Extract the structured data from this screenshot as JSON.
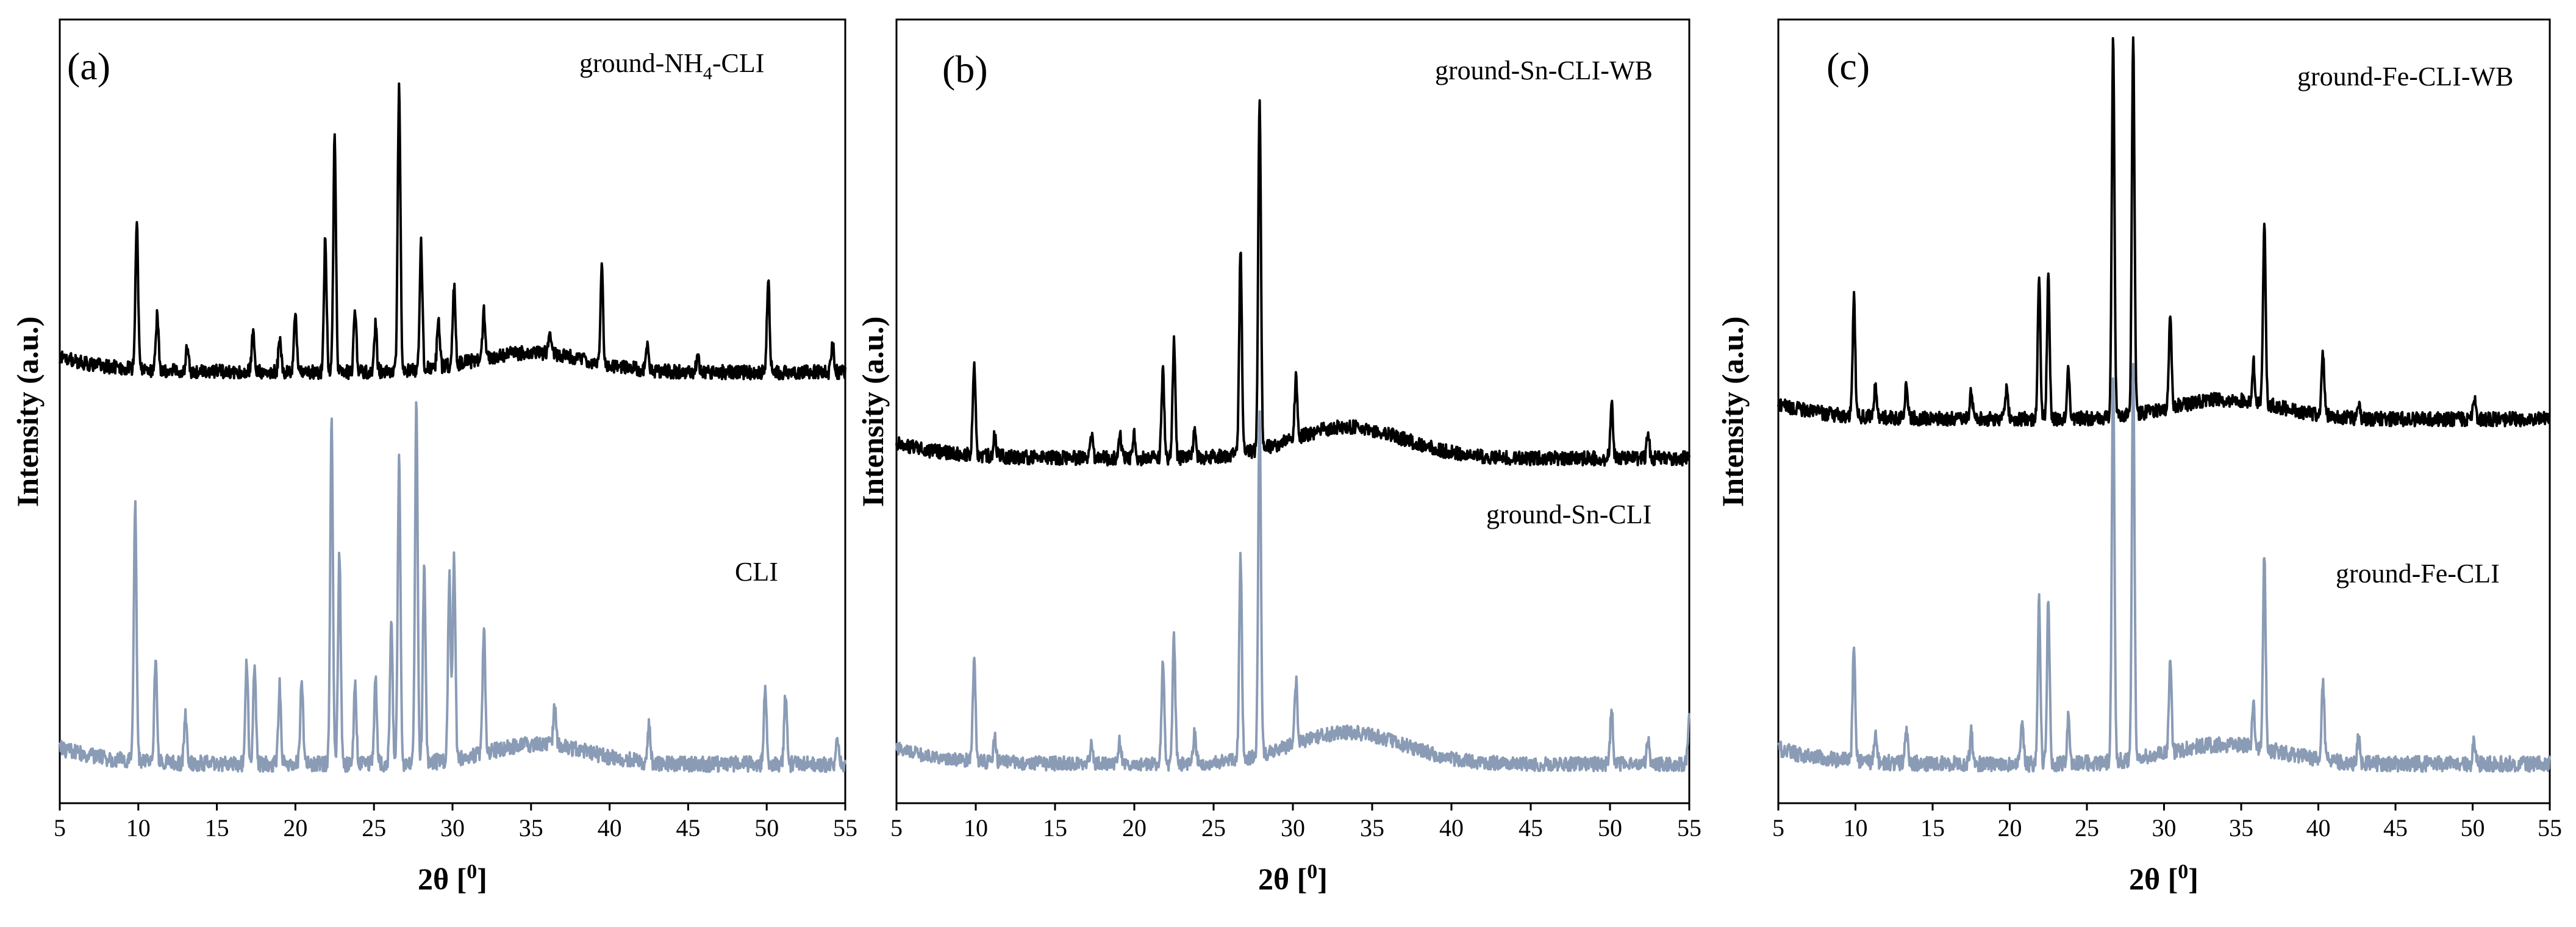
{
  "colors": {
    "treated_series": "#000000",
    "reference_series": "#8a9bb5",
    "axis": "#000000",
    "background": "#ffffff"
  },
  "chart_data": [
    {
      "type": "line",
      "panel_label": "(a)",
      "xlabel": "2θ [",
      "xlabel_unit": "0",
      "xlabel_close": "]",
      "ylabel": "Intensity (a.u.)",
      "xlim": [
        5,
        55
      ],
      "ylim": [
        0,
        100
      ],
      "y_ticks_shown": false,
      "x_ticks": [
        5,
        10,
        15,
        20,
        25,
        30,
        35,
        40,
        45,
        50,
        55
      ],
      "x_tick_labels": [
        "5",
        "10",
        "15",
        "20",
        "25",
        "30",
        "35",
        "40",
        "45",
        "50",
        "55"
      ],
      "series": [
        {
          "name": "ground-NH4-CLI",
          "label_main": "ground-NH",
          "label_sub": "4",
          "label_tail": "-CLI",
          "color": "#000000",
          "baseline": 55,
          "noise_amp": 0.9,
          "hump": {
            "center": 35,
            "width": 5,
            "height": 2.5
          },
          "peaks": [
            {
              "x": 9.9,
              "h": 19
            },
            {
              "x": 11.2,
              "h": 7
            },
            {
              "x": 13.1,
              "h": 3
            },
            {
              "x": 17.3,
              "h": 5
            },
            {
              "x": 19.0,
              "h": 4
            },
            {
              "x": 20.0,
              "h": 8
            },
            {
              "x": 21.9,
              "h": 17
            },
            {
              "x": 22.5,
              "h": 30
            },
            {
              "x": 23.8,
              "h": 8
            },
            {
              "x": 25.1,
              "h": 6
            },
            {
              "x": 26.6,
              "h": 36
            },
            {
              "x": 28.0,
              "h": 16
            },
            {
              "x": 29.1,
              "h": 6
            },
            {
              "x": 30.1,
              "h": 10
            },
            {
              "x": 32.0,
              "h": 6
            },
            {
              "x": 36.2,
              "h": 3
            },
            {
              "x": 39.5,
              "h": 12
            },
            {
              "x": 42.4,
              "h": 3
            },
            {
              "x": 45.6,
              "h": 2
            },
            {
              "x": 50.1,
              "h": 12
            },
            {
              "x": 54.2,
              "h": 4
            }
          ]
        },
        {
          "name": "CLI",
          "label_main": "CLI",
          "color": "#8a9bb5",
          "baseline": 5,
          "noise_amp": 1.0,
          "hump": {
            "center": 35.5,
            "width": 4.5,
            "height": 2.5
          },
          "peaks": [
            {
              "x": 9.8,
              "h": 33
            },
            {
              "x": 11.1,
              "h": 13
            },
            {
              "x": 13.0,
              "h": 6
            },
            {
              "x": 16.9,
              "h": 13
            },
            {
              "x": 17.4,
              "h": 13
            },
            {
              "x": 19.0,
              "h": 10
            },
            {
              "x": 20.4,
              "h": 11
            },
            {
              "x": 22.3,
              "h": 44
            },
            {
              "x": 22.8,
              "h": 27
            },
            {
              "x": 23.8,
              "h": 10
            },
            {
              "x": 25.1,
              "h": 11
            },
            {
              "x": 26.1,
              "h": 18
            },
            {
              "x": 26.6,
              "h": 39
            },
            {
              "x": 27.7,
              "h": 46
            },
            {
              "x": 28.2,
              "h": 25
            },
            {
              "x": 29.8,
              "h": 24
            },
            {
              "x": 30.1,
              "h": 26
            },
            {
              "x": 32.0,
              "h": 16
            },
            {
              "x": 36.5,
              "h": 5
            },
            {
              "x": 42.5,
              "h": 5
            },
            {
              "x": 49.9,
              "h": 10
            },
            {
              "x": 51.2,
              "h": 9
            },
            {
              "x": 54.5,
              "h": 3
            }
          ]
        }
      ]
    },
    {
      "type": "line",
      "panel_label": "(b)",
      "xlabel": "2θ [",
      "xlabel_unit": "0",
      "xlabel_close": "]",
      "ylabel": "Intensity (a.u.)",
      "xlim": [
        5,
        55
      ],
      "ylim": [
        0,
        100
      ],
      "y_ticks_shown": false,
      "x_ticks": [
        5,
        10,
        15,
        20,
        25,
        30,
        35,
        40,
        45,
        50,
        55
      ],
      "x_tick_labels": [
        "5",
        "10",
        "15",
        "20",
        "25",
        "30",
        "35",
        "40",
        "45",
        "50",
        "55"
      ],
      "series": [
        {
          "name": "ground-Sn-CLI-WB",
          "label_main": "ground-Sn-CLI-WB",
          "color": "#000000",
          "baseline": 44,
          "noise_amp": 0.9,
          "hump": {
            "center": 33.5,
            "width": 5,
            "height": 4
          },
          "peaks": [
            {
              "x": 9.9,
              "h": 12
            },
            {
              "x": 11.2,
              "h": 3
            },
            {
              "x": 17.3,
              "h": 3
            },
            {
              "x": 19.1,
              "h": 3
            },
            {
              "x": 20.0,
              "h": 3
            },
            {
              "x": 21.8,
              "h": 11
            },
            {
              "x": 22.5,
              "h": 15
            },
            {
              "x": 23.8,
              "h": 4
            },
            {
              "x": 26.7,
              "h": 26
            },
            {
              "x": 27.9,
              "h": 45
            },
            {
              "x": 30.2,
              "h": 8
            },
            {
              "x": 50.1,
              "h": 7
            },
            {
              "x": 52.4,
              "h": 3
            }
          ]
        },
        {
          "name": "ground-Sn-CLI",
          "label_main": "ground-Sn-CLI",
          "color": "#8a9bb5",
          "baseline": 5,
          "noise_amp": 0.9,
          "hump": {
            "center": 33.5,
            "width": 5,
            "height": 4
          },
          "peaks": [
            {
              "x": 9.9,
              "h": 13
            },
            {
              "x": 11.2,
              "h": 3
            },
            {
              "x": 17.3,
              "h": 3
            },
            {
              "x": 19.1,
              "h": 3
            },
            {
              "x": 21.8,
              "h": 13
            },
            {
              "x": 22.5,
              "h": 16
            },
            {
              "x": 23.8,
              "h": 4
            },
            {
              "x": 26.7,
              "h": 26
            },
            {
              "x": 27.9,
              "h": 44
            },
            {
              "x": 30.2,
              "h": 8
            },
            {
              "x": 50.1,
              "h": 7
            },
            {
              "x": 52.4,
              "h": 3
            },
            {
              "x": 55.0,
              "h": 6
            }
          ]
        }
      ]
    },
    {
      "type": "line",
      "panel_label": "(c)",
      "xlabel": "2θ [",
      "xlabel_unit": "0",
      "xlabel_close": "]",
      "ylabel": "Intensity (a.u.)",
      "xlim": [
        5,
        55
      ],
      "ylim": [
        0,
        100
      ],
      "y_ticks_shown": false,
      "x_ticks": [
        5,
        10,
        15,
        20,
        25,
        30,
        35,
        40,
        45,
        50,
        55
      ],
      "x_tick_labels": [
        "5",
        "10",
        "15",
        "20",
        "25",
        "30",
        "35",
        "40",
        "45",
        "50",
        "55"
      ],
      "series": [
        {
          "name": "ground-Fe-CLI-WB",
          "label_main": "ground-Fe-CLI-WB",
          "color": "#000000",
          "baseline": 49,
          "noise_amp": 0.9,
          "hump": {
            "center": 34,
            "width": 5,
            "height": 2.5
          },
          "peaks": [
            {
              "x": 9.9,
              "h": 15
            },
            {
              "x": 11.3,
              "h": 4
            },
            {
              "x": 13.3,
              "h": 4
            },
            {
              "x": 17.5,
              "h": 4
            },
            {
              "x": 19.8,
              "h": 4
            },
            {
              "x": 21.9,
              "h": 18
            },
            {
              "x": 22.5,
              "h": 18
            },
            {
              "x": 23.8,
              "h": 6
            },
            {
              "x": 26.7,
              "h": 48
            },
            {
              "x": 28.0,
              "h": 48
            },
            {
              "x": 30.4,
              "h": 12
            },
            {
              "x": 35.8,
              "h": 5
            },
            {
              "x": 36.5,
              "h": 23
            },
            {
              "x": 40.3,
              "h": 8
            },
            {
              "x": 42.6,
              "h": 2
            },
            {
              "x": 50.1,
              "h": 3
            }
          ]
        },
        {
          "name": "ground-Fe-CLI",
          "label_main": "ground-Fe-CLI",
          "color": "#8a9bb5",
          "baseline": 5,
          "noise_amp": 1.0,
          "hump": {
            "center": 34,
            "width": 5,
            "height": 2.5
          },
          "peaks": [
            {
              "x": 9.9,
              "h": 15
            },
            {
              "x": 11.3,
              "h": 4
            },
            {
              "x": 13.3,
              "h": 4
            },
            {
              "x": 17.5,
              "h": 4
            },
            {
              "x": 20.8,
              "h": 6
            },
            {
              "x": 21.9,
              "h": 21
            },
            {
              "x": 22.5,
              "h": 21
            },
            {
              "x": 23.8,
              "h": 6
            },
            {
              "x": 26.7,
              "h": 50
            },
            {
              "x": 28.0,
              "h": 50
            },
            {
              "x": 30.4,
              "h": 12
            },
            {
              "x": 35.8,
              "h": 5
            },
            {
              "x": 36.5,
              "h": 25
            },
            {
              "x": 40.3,
              "h": 10
            },
            {
              "x": 42.6,
              "h": 3
            },
            {
              "x": 50.1,
              "h": 3
            }
          ]
        }
      ]
    }
  ]
}
